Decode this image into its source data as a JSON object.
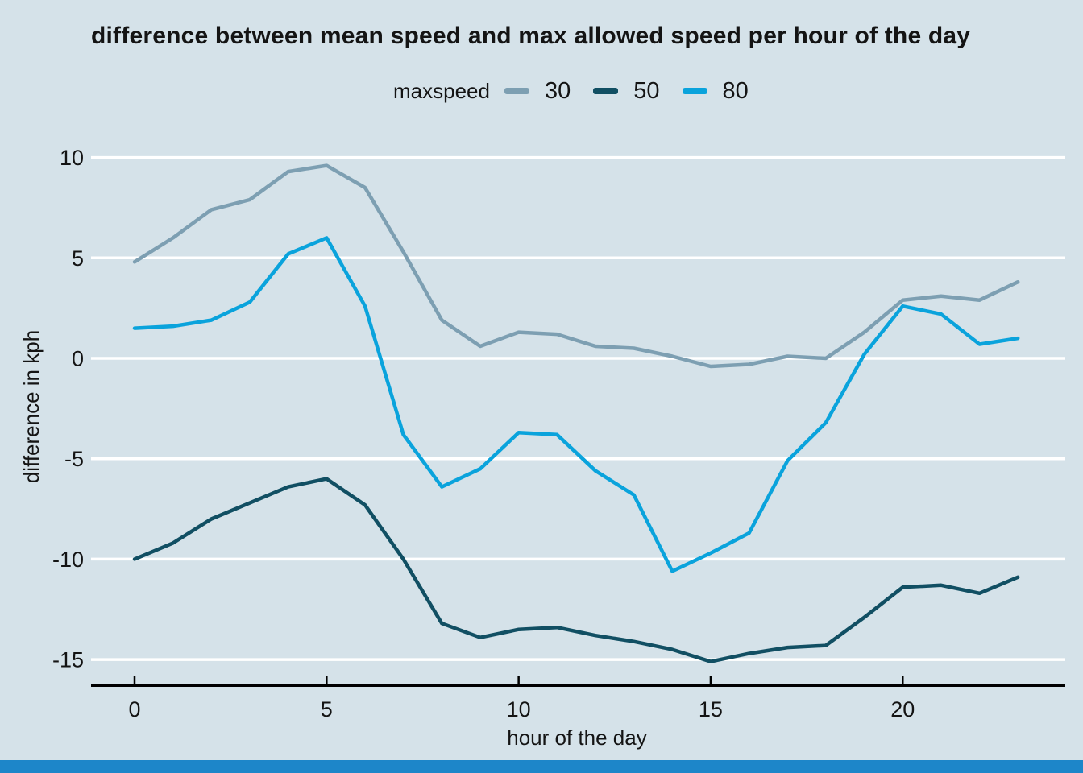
{
  "window": {
    "background": "#d5e2e9",
    "bottom_bar_color": "#1d86c9"
  },
  "title": "difference between mean speed and max allowed speed per hour of the day",
  "legend": {
    "label": "maxspeed",
    "items": [
      {
        "name": "30",
        "color": "#7d9fb2"
      },
      {
        "name": "50",
        "color": "#114f63"
      },
      {
        "name": "80",
        "color": "#0aa3dc"
      }
    ]
  },
  "axes": {
    "x": {
      "label": "hour of the day",
      "tick_labels": [
        "0",
        "5",
        "10",
        "15",
        "20"
      ],
      "tick_values": [
        0,
        5,
        10,
        15,
        20
      ]
    },
    "y": {
      "label": "difference in kph",
      "tick_labels": [
        "10",
        "5",
        "0",
        "-5",
        "-10",
        "-15"
      ],
      "tick_values": [
        10,
        5,
        0,
        -5,
        -10,
        -15
      ]
    }
  },
  "chart_data": {
    "type": "line",
    "title": "difference between mean speed and max allowed speed per hour of the day",
    "xlabel": "hour of the day",
    "ylabel": "difference in kph",
    "legend_title": "maxspeed",
    "legend_position": "top-center",
    "background": "#d5e2e9",
    "gridline_color": "#ffffff",
    "grid": "horizontal",
    "xlim": [
      -1.13,
      24.23
    ],
    "ylim": [
      -15.5,
      10.5
    ],
    "xticks": [
      0,
      5,
      10,
      15,
      20
    ],
    "yticks": [
      10,
      5,
      0,
      -5,
      -10,
      -15
    ],
    "x": [
      0,
      1,
      2,
      3,
      4,
      5,
      6,
      7,
      8,
      9,
      10,
      11,
      12,
      13,
      14,
      15,
      16,
      17,
      18,
      19,
      20,
      21,
      22,
      23
    ],
    "series": [
      {
        "name": "30",
        "color": "#7d9fb2",
        "values": [
          4.8,
          6.0,
          7.4,
          7.9,
          9.3,
          9.6,
          8.5,
          5.3,
          1.9,
          0.6,
          1.3,
          1.2,
          0.6,
          0.5,
          0.1,
          -0.4,
          -0.3,
          0.1,
          0.0,
          1.3,
          2.9,
          3.1,
          2.9,
          3.8
        ]
      },
      {
        "name": "50",
        "color": "#114f63",
        "values": [
          -10.0,
          -9.2,
          -8.0,
          -7.2,
          -6.4,
          -6.0,
          -7.3,
          -10.0,
          -13.2,
          -13.9,
          -13.5,
          -13.4,
          -13.8,
          -14.1,
          -14.5,
          -15.1,
          -14.7,
          -14.4,
          -14.3,
          -12.9,
          -11.4,
          -11.3,
          -11.7,
          -10.9
        ]
      },
      {
        "name": "80",
        "color": "#0aa3dc",
        "values": [
          1.5,
          1.6,
          1.9,
          2.8,
          5.2,
          6.0,
          2.6,
          -3.8,
          -6.4,
          -5.5,
          -3.7,
          -3.8,
          -5.6,
          -6.8,
          -10.6,
          -9.7,
          -8.7,
          -5.1,
          -3.2,
          0.2,
          2.6,
          2.2,
          0.7,
          1.0
        ]
      }
    ]
  }
}
